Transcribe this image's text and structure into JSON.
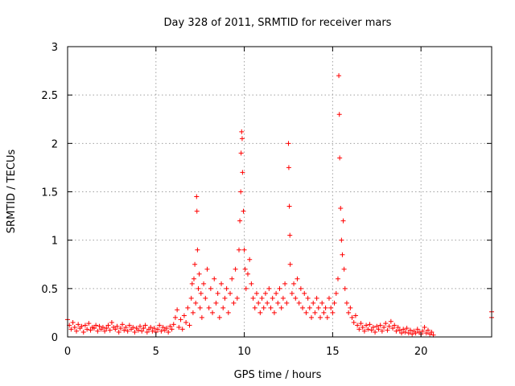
{
  "chart_data": {
    "type": "scatter",
    "title": "Day 328 of 2011, SRMTID for receiver mars",
    "xlabel": "GPS time / hours",
    "ylabel": "SRMTID / TECUs",
    "xlim": [
      0,
      24
    ],
    "ylim": [
      0,
      3
    ],
    "x_ticks": [
      0,
      5,
      10,
      15,
      20
    ],
    "y_ticks": [
      0,
      0.5,
      1,
      1.5,
      2,
      2.5,
      3
    ],
    "x_tick_labels": [
      "0",
      "5",
      "10",
      "15",
      "20"
    ],
    "y_tick_labels": [
      "0",
      "0.5",
      "1",
      "1.5",
      "2",
      "2.5",
      "3"
    ],
    "grid": true,
    "marker": "plus",
    "color": "#ff0000",
    "series": [
      {
        "points": [
          [
            0.0,
            0.18
          ],
          [
            0.1,
            0.12
          ],
          [
            0.2,
            0.08
          ],
          [
            0.3,
            0.15
          ],
          [
            0.4,
            0.1
          ],
          [
            0.5,
            0.06
          ],
          [
            0.6,
            0.13
          ],
          [
            0.7,
            0.09
          ],
          [
            0.8,
            0.11
          ],
          [
            0.9,
            0.05
          ],
          [
            1.0,
            0.12
          ],
          [
            1.1,
            0.08
          ],
          [
            1.2,
            0.14
          ],
          [
            1.3,
            0.07
          ],
          [
            1.4,
            0.1
          ],
          [
            1.5,
            0.09
          ],
          [
            1.6,
            0.12
          ],
          [
            1.7,
            0.06
          ],
          [
            1.8,
            0.11
          ],
          [
            1.9,
            0.08
          ],
          [
            2.0,
            0.1
          ],
          [
            2.1,
            0.06
          ],
          [
            2.2,
            0.09
          ],
          [
            2.3,
            0.12
          ],
          [
            2.4,
            0.07
          ],
          [
            2.5,
            0.15
          ],
          [
            2.6,
            0.1
          ],
          [
            2.7,
            0.08
          ],
          [
            2.8,
            0.11
          ],
          [
            2.9,
            0.05
          ],
          [
            3.0,
            0.09
          ],
          [
            3.1,
            0.13
          ],
          [
            3.2,
            0.07
          ],
          [
            3.3,
            0.1
          ],
          [
            3.4,
            0.06
          ],
          [
            3.5,
            0.12
          ],
          [
            3.6,
            0.08
          ],
          [
            3.7,
            0.1
          ],
          [
            3.8,
            0.05
          ],
          [
            3.9,
            0.09
          ],
          [
            4.0,
            0.07
          ],
          [
            4.1,
            0.11
          ],
          [
            4.2,
            0.06
          ],
          [
            4.3,
            0.09
          ],
          [
            4.4,
            0.12
          ],
          [
            4.5,
            0.05
          ],
          [
            4.6,
            0.08
          ],
          [
            4.7,
            0.1
          ],
          [
            4.8,
            0.06
          ],
          [
            4.9,
            0.09
          ],
          [
            5.0,
            0.05
          ],
          [
            5.1,
            0.08
          ],
          [
            5.2,
            0.12
          ],
          [
            5.3,
            0.06
          ],
          [
            5.4,
            0.1
          ],
          [
            5.5,
            0.07
          ],
          [
            5.6,
            0.09
          ],
          [
            5.7,
            0.05
          ],
          [
            5.8,
            0.11
          ],
          [
            5.9,
            0.08
          ],
          [
            6.0,
            0.13
          ],
          [
            6.1,
            0.2
          ],
          [
            6.2,
            0.28
          ],
          [
            6.3,
            0.1
          ],
          [
            6.4,
            0.18
          ],
          [
            6.5,
            0.08
          ],
          [
            6.6,
            0.22
          ],
          [
            6.7,
            0.15
          ],
          [
            6.8,
            0.3
          ],
          [
            6.9,
            0.12
          ],
          [
            7.0,
            0.4
          ],
          [
            7.05,
            0.55
          ],
          [
            7.1,
            0.25
          ],
          [
            7.15,
            0.6
          ],
          [
            7.2,
            0.75
          ],
          [
            7.25,
            0.35
          ],
          [
            7.3,
            1.45
          ],
          [
            7.32,
            1.3
          ],
          [
            7.35,
            0.9
          ],
          [
            7.4,
            0.5
          ],
          [
            7.45,
            0.65
          ],
          [
            7.5,
            0.3
          ],
          [
            7.55,
            0.45
          ],
          [
            7.6,
            0.2
          ],
          [
            7.7,
            0.55
          ],
          [
            7.8,
            0.4
          ],
          [
            7.9,
            0.7
          ],
          [
            8.0,
            0.3
          ],
          [
            8.1,
            0.5
          ],
          [
            8.2,
            0.25
          ],
          [
            8.3,
            0.6
          ],
          [
            8.4,
            0.35
          ],
          [
            8.5,
            0.45
          ],
          [
            8.6,
            0.2
          ],
          [
            8.7,
            0.55
          ],
          [
            8.8,
            0.3
          ],
          [
            8.9,
            0.4
          ],
          [
            9.0,
            0.5
          ],
          [
            9.1,
            0.25
          ],
          [
            9.2,
            0.45
          ],
          [
            9.3,
            0.6
          ],
          [
            9.4,
            0.35
          ],
          [
            9.5,
            0.7
          ],
          [
            9.6,
            0.4
          ],
          [
            9.7,
            0.9
          ],
          [
            9.75,
            1.2
          ],
          [
            9.8,
            1.5
          ],
          [
            9.82,
            1.9
          ],
          [
            9.85,
            2.12
          ],
          [
            9.88,
            2.05
          ],
          [
            9.9,
            1.7
          ],
          [
            9.95,
            1.3
          ],
          [
            10.0,
            0.9
          ],
          [
            10.05,
            0.7
          ],
          [
            10.1,
            0.5
          ],
          [
            10.2,
            0.65
          ],
          [
            10.3,
            0.8
          ],
          [
            10.4,
            0.55
          ],
          [
            10.5,
            0.4
          ],
          [
            10.6,
            0.3
          ],
          [
            10.7,
            0.45
          ],
          [
            10.8,
            0.35
          ],
          [
            10.9,
            0.25
          ],
          [
            11.0,
            0.4
          ],
          [
            11.1,
            0.3
          ],
          [
            11.2,
            0.45
          ],
          [
            11.3,
            0.35
          ],
          [
            11.4,
            0.5
          ],
          [
            11.5,
            0.3
          ],
          [
            11.6,
            0.4
          ],
          [
            11.7,
            0.25
          ],
          [
            11.8,
            0.45
          ],
          [
            11.9,
            0.35
          ],
          [
            12.0,
            0.5
          ],
          [
            12.1,
            0.3
          ],
          [
            12.2,
            0.4
          ],
          [
            12.3,
            0.55
          ],
          [
            12.4,
            0.35
          ],
          [
            12.5,
            2.0
          ],
          [
            12.52,
            1.75
          ],
          [
            12.55,
            1.35
          ],
          [
            12.58,
            1.05
          ],
          [
            12.6,
            0.75
          ],
          [
            12.7,
            0.45
          ],
          [
            12.8,
            0.55
          ],
          [
            12.9,
            0.4
          ],
          [
            13.0,
            0.6
          ],
          [
            13.1,
            0.35
          ],
          [
            13.2,
            0.5
          ],
          [
            13.3,
            0.3
          ],
          [
            13.4,
            0.45
          ],
          [
            13.5,
            0.25
          ],
          [
            13.6,
            0.4
          ],
          [
            13.7,
            0.3
          ],
          [
            13.8,
            0.2
          ],
          [
            13.9,
            0.35
          ],
          [
            14.0,
            0.25
          ],
          [
            14.1,
            0.4
          ],
          [
            14.2,
            0.3
          ],
          [
            14.3,
            0.2
          ],
          [
            14.4,
            0.35
          ],
          [
            14.5,
            0.25
          ],
          [
            14.6,
            0.3
          ],
          [
            14.7,
            0.2
          ],
          [
            14.8,
            0.4
          ],
          [
            14.9,
            0.3
          ],
          [
            15.0,
            0.25
          ],
          [
            15.1,
            0.35
          ],
          [
            15.2,
            0.45
          ],
          [
            15.3,
            0.6
          ],
          [
            15.35,
            2.7
          ],
          [
            15.38,
            2.3
          ],
          [
            15.4,
            1.85
          ],
          [
            15.45,
            1.33
          ],
          [
            15.5,
            1.0
          ],
          [
            15.55,
            0.85
          ],
          [
            15.6,
            1.2
          ],
          [
            15.65,
            0.7
          ],
          [
            15.7,
            0.5
          ],
          [
            15.8,
            0.35
          ],
          [
            15.9,
            0.25
          ],
          [
            16.0,
            0.3
          ],
          [
            16.1,
            0.2
          ],
          [
            16.2,
            0.15
          ],
          [
            16.3,
            0.22
          ],
          [
            16.4,
            0.12
          ],
          [
            16.5,
            0.08
          ],
          [
            16.6,
            0.14
          ],
          [
            16.7,
            0.1
          ],
          [
            16.8,
            0.06
          ],
          [
            16.9,
            0.12
          ],
          [
            17.0,
            0.08
          ],
          [
            17.1,
            0.13
          ],
          [
            17.2,
            0.07
          ],
          [
            17.3,
            0.1
          ],
          [
            17.4,
            0.05
          ],
          [
            17.5,
            0.11
          ],
          [
            17.6,
            0.08
          ],
          [
            17.7,
            0.12
          ],
          [
            17.8,
            0.06
          ],
          [
            17.9,
            0.1
          ],
          [
            18.0,
            0.14
          ],
          [
            18.1,
            0.07
          ],
          [
            18.2,
            0.11
          ],
          [
            18.3,
            0.16
          ],
          [
            18.4,
            0.09
          ],
          [
            18.5,
            0.12
          ],
          [
            18.6,
            0.06
          ],
          [
            18.7,
            0.1
          ],
          [
            18.8,
            0.07
          ],
          [
            18.9,
            0.04
          ],
          [
            19.0,
            0.08
          ],
          [
            19.1,
            0.05
          ],
          [
            19.2,
            0.09
          ],
          [
            19.3,
            0.04
          ],
          [
            19.4,
            0.07
          ],
          [
            19.5,
            0.03
          ],
          [
            19.6,
            0.06
          ],
          [
            19.7,
            0.04
          ],
          [
            19.8,
            0.08
          ],
          [
            19.9,
            0.05
          ],
          [
            20.0,
            0.03
          ],
          [
            20.1,
            0.06
          ],
          [
            20.2,
            0.1
          ],
          [
            20.3,
            0.04
          ],
          [
            20.4,
            0.07
          ],
          [
            20.5,
            0.03
          ],
          [
            20.6,
            0.05
          ],
          [
            20.7,
            0.02
          ],
          [
            24.0,
            0.2
          ],
          [
            24.0,
            0.26
          ]
        ]
      }
    ]
  }
}
